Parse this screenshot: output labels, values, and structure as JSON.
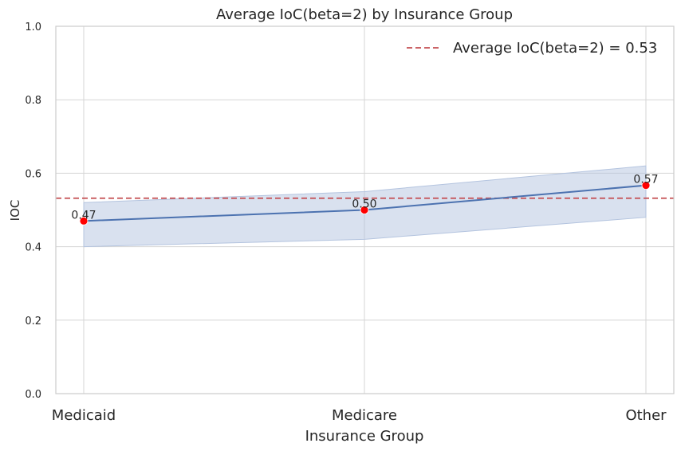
{
  "chart_data": {
    "type": "line",
    "title": "Average IoC(beta=2) by Insurance Group",
    "xlabel": "Insurance Group",
    "ylabel": "IOC",
    "categories": [
      "Medicaid",
      "Medicare",
      "Other"
    ],
    "series": [
      {
        "values": [
          0.47,
          0.5,
          0.567
        ],
        "ci_lower": [
          0.4,
          0.42,
          0.48
        ],
        "ci_upper": [
          0.52,
          0.55,
          0.62
        ],
        "color": "#4c72b0",
        "band_color": "#b4c4df"
      }
    ],
    "point_color": "#ff0000",
    "data_labels": [
      "0.47",
      "0.50",
      "0.57"
    ],
    "reference_line": {
      "value": 0.532,
      "label": "Average IoC(beta=2) = 0.53",
      "color": "#c44e52",
      "style": "dashed"
    },
    "ylim": [
      0,
      1
    ],
    "yticks": [
      0.0,
      0.2,
      0.4,
      0.6,
      0.8,
      1.0
    ],
    "ytick_labels": [
      "0.0",
      "0.2",
      "0.4",
      "0.6",
      "0.8",
      "1.0"
    ],
    "grid": true,
    "legend": "top-right"
  }
}
